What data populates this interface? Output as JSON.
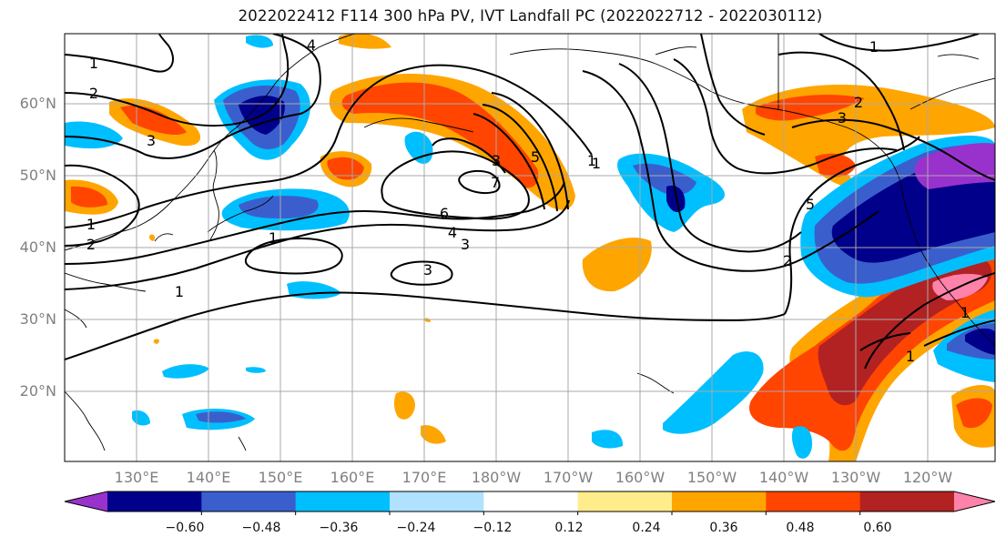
{
  "title": "2022022412 F114 300 hPa PV, IVT Landfall PC (2022022712 - 2022030112)",
  "lat_labels": [
    "60°N",
    "50°N",
    "40°N",
    "30°N",
    "20°N"
  ],
  "lon_labels": [
    "130°E",
    "140°E",
    "150°E",
    "160°E",
    "170°E",
    "180°W",
    "170°W",
    "160°W",
    "150°W",
    "140°W",
    "130°W",
    "120°W"
  ],
  "colorbar": {
    "colors": [
      "#9932cc",
      "#00008b",
      "#3a5fcd",
      "#00bfff",
      "#b0e2ff",
      "#ffffff",
      "#ffec8b",
      "#ffa500",
      "#ff4500",
      "#b22222",
      "#ff82ab"
    ],
    "tick_labels": [
      "−0.60",
      "−0.48",
      "−0.36",
      "−0.24",
      "−0.12",
      "0.12",
      "0.24",
      "0.36",
      "0.48",
      "0.60"
    ]
  },
  "contour_labels": [
    "1",
    "2",
    "3",
    "4",
    "1",
    "1",
    "2",
    "3",
    "1",
    "1",
    "6",
    "4",
    "3",
    "3",
    "7",
    "5",
    "5",
    "1",
    "1",
    "2",
    "2",
    "3",
    "1",
    "1"
  ]
}
